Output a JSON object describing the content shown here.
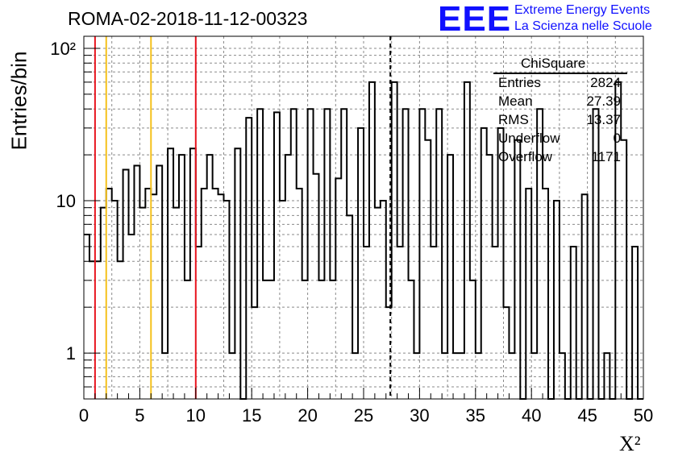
{
  "header": {
    "title": "ROMA-02-2018-11-12-00323",
    "logo_text": "EEE",
    "logo_line1": "Extreme Energy Events",
    "logo_line2": "La Scienza nelle Scuole"
  },
  "stats_box": {
    "title": "ChiSquare",
    "rows": [
      {
        "label": "Entries",
        "value": "2824"
      },
      {
        "label": "Mean",
        "value": "27.39"
      },
      {
        "label": "RMS",
        "value": "13.37"
      },
      {
        "label": "Underflow",
        "value": "0"
      },
      {
        "label": "Overflow",
        "value": "1171"
      }
    ]
  },
  "chart_data": {
    "type": "histogram",
    "title": "ROMA-02-2018-11-12-00323",
    "xlabel": "X²",
    "ylabel": "Entries/bin",
    "xlim": [
      0,
      50
    ],
    "ylim": [
      0.5,
      120
    ],
    "y_scale": "log",
    "grid": true,
    "bin_width": 0.5,
    "x_ticks": [
      "0",
      "5",
      "10",
      "15",
      "20",
      "25",
      "30",
      "35",
      "40",
      "45",
      "50"
    ],
    "y_ticks": [
      {
        "value": 1,
        "label": "1"
      },
      {
        "value": 10,
        "label": "10"
      },
      {
        "value": 100,
        "label": "10²"
      }
    ],
    "values": [
      6,
      4,
      4,
      9,
      12,
      10,
      4,
      16,
      6,
      17,
      9,
      12,
      11,
      17,
      1,
      22,
      9,
      20,
      3,
      22,
      5,
      12,
      20,
      12,
      11,
      10,
      1,
      22,
      0,
      35,
      2,
      40,
      3,
      3,
      38,
      10,
      20,
      40,
      12,
      3,
      40,
      15,
      3,
      40,
      3,
      14,
      40,
      8,
      1,
      30,
      5,
      60,
      9,
      10,
      2,
      60,
      5,
      40,
      3,
      1,
      40,
      25,
      5,
      40,
      1,
      20,
      1,
      1,
      60,
      3,
      1,
      30,
      20,
      5,
      30,
      2,
      1,
      25,
      0,
      12,
      1,
      40,
      12,
      0,
      10,
      1,
      0,
      5,
      0,
      11,
      0,
      40,
      0,
      1,
      0,
      60,
      25,
      0,
      5,
      0
    ],
    "vertical_lines": [
      {
        "x": 1,
        "color": "#e8141e",
        "style": "solid"
      },
      {
        "x": 2,
        "color": "#f5c11a",
        "style": "solid"
      },
      {
        "x": 6,
        "color": "#f5c11a",
        "style": "solid"
      },
      {
        "x": 10,
        "color": "#e8141e",
        "style": "solid"
      },
      {
        "x": 27.39,
        "color": "#000000",
        "style": "dashed"
      }
    ]
  }
}
